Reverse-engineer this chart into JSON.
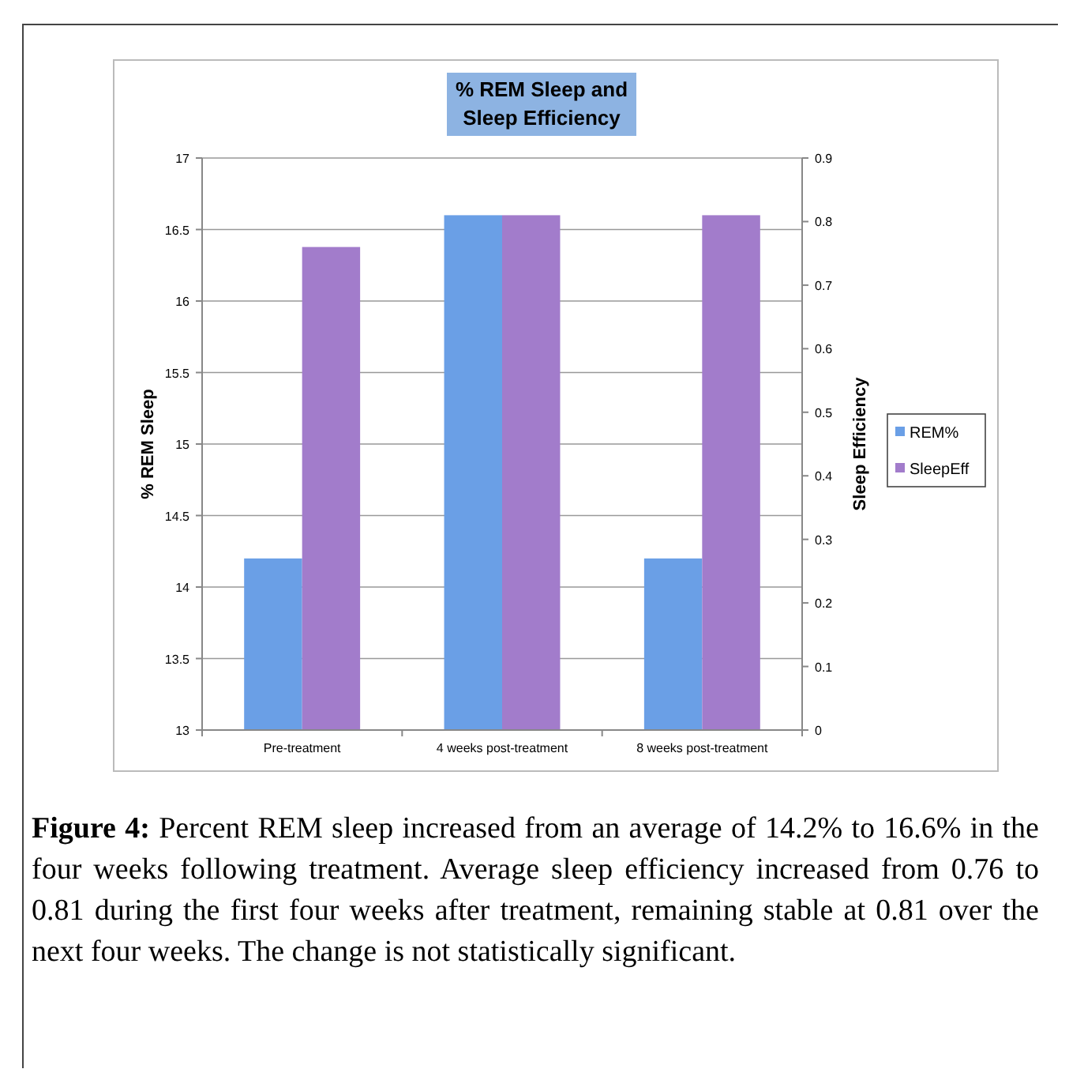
{
  "chart_data": {
    "type": "bar",
    "title": "% REM Sleep and Sleep Efficiency",
    "categories": [
      "Pre-treatment",
      "4 weeks post-treatment",
      "8 weeks post-treatment"
    ],
    "series": [
      {
        "name": "REM%",
        "color": "#6a9fe6",
        "values": [
          14.2,
          16.6,
          14.2
        ]
      },
      {
        "name": "SleepEff",
        "color": "#a27ccb",
        "values": [
          0.76,
          0.81,
          0.81
        ],
        "axis": "y2"
      }
    ],
    "ylabel": "% REM Sleep",
    "y2label": "Sleep Efficiency",
    "ylim": [
      13,
      17
    ],
    "yticks": [
      13,
      13.5,
      14,
      14.5,
      15,
      15.5,
      16,
      16.5,
      17
    ],
    "y2lim": [
      0,
      0.9
    ],
    "y2ticks": [
      0,
      0.1,
      0.2,
      0.3,
      0.4,
      0.5,
      0.6,
      0.7,
      0.8,
      0.9
    ],
    "grid": "y",
    "legend": "right",
    "annotations": [
      "Figure 4: Percent REM sleep increased from an average of 14.2% to 16.6% in the four weeks following treatment. Average sleep efficiency increased from 0.76 to 0.81 during the first four weeks after treatment, remaining stable at 0.81 over the next four weeks. The change is not statistically significant."
    ]
  }
}
